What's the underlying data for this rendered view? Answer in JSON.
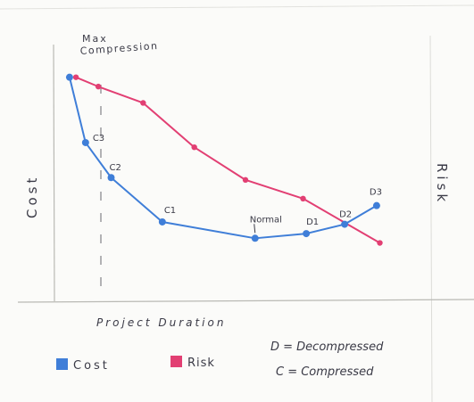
{
  "chart_data": {
    "type": "line",
    "annotation_top": [
      "Max",
      "Compression"
    ],
    "ylabel_left": "Cost",
    "ylabel_right": "Risk",
    "xlabel": "Project Duration",
    "series": [
      {
        "name": "Cost",
        "color": "#3f7ed8",
        "points": [
          {
            "x": 0.05,
            "y": 9.6,
            "label": ""
          },
          {
            "x": 0.1,
            "y": 6.8,
            "label": "C3"
          },
          {
            "x": 0.18,
            "y": 5.3,
            "label": "C2"
          },
          {
            "x": 0.34,
            "y": 3.4,
            "label": "C1"
          },
          {
            "x": 0.63,
            "y": 2.7,
            "label": "Normal"
          },
          {
            "x": 0.79,
            "y": 2.9,
            "label": "D1"
          },
          {
            "x": 0.91,
            "y": 3.3,
            "label": "D2"
          },
          {
            "x": 1.01,
            "y": 4.1,
            "label": "D3"
          }
        ]
      },
      {
        "name": "Risk",
        "color": "#e23f73",
        "points": [
          {
            "x": 0.07,
            "y": 9.6
          },
          {
            "x": 0.14,
            "y": 9.2
          },
          {
            "x": 0.28,
            "y": 8.5
          },
          {
            "x": 0.44,
            "y": 6.6
          },
          {
            "x": 0.6,
            "y": 5.2
          },
          {
            "x": 0.78,
            "y": 4.4
          },
          {
            "x": 1.02,
            "y": 2.5
          }
        ]
      }
    ],
    "legend": [
      {
        "name": "Cost",
        "color": "#3f7ed8"
      },
      {
        "name": "Risk",
        "color": "#e23f73"
      }
    ],
    "notes": [
      "D = Decompressed",
      "C = Compressed"
    ],
    "xlim": [
      0,
      1.2
    ],
    "ylim": [
      0,
      11
    ],
    "grid": false
  }
}
